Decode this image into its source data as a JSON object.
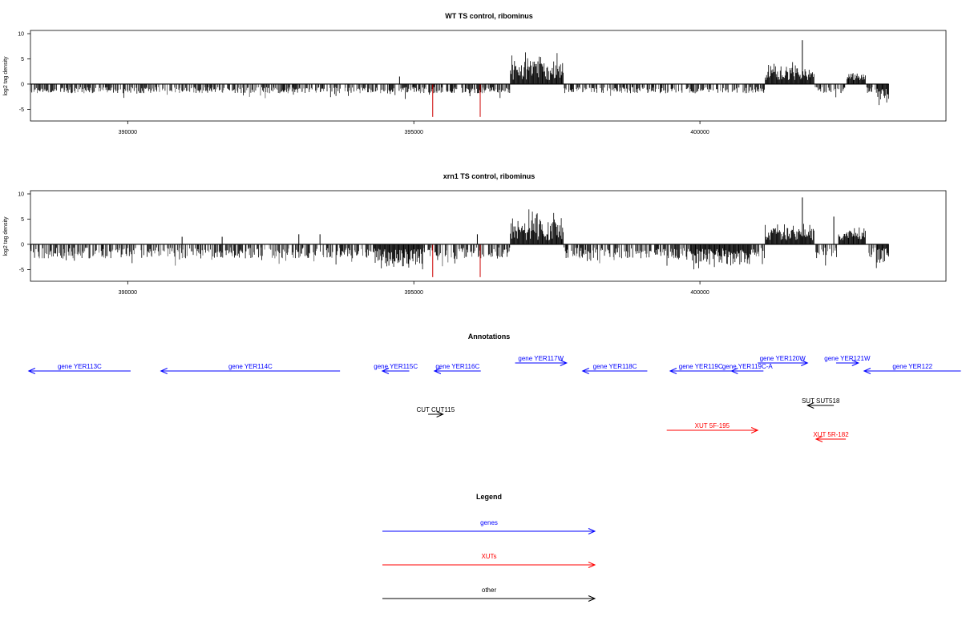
{
  "chart_data": {
    "type": "bar",
    "x_ticks": [
      390000,
      395000,
      400000
    ],
    "xlim": [
      388300,
      404300
    ],
    "ylim": [
      -7,
      10
    ],
    "y_ticks": [
      -5,
      0,
      5,
      10
    ],
    "ylabel": "log2 tag density",
    "colors": {
      "forward": "#000000",
      "reverse": "#1a1a1a",
      "highlight": "#cc0000"
    },
    "tracks": [
      {
        "title": "WT TS control, ribominus",
        "base_scale": 0.55,
        "highlight_lines": [
          {
            "x": 395330,
            "y": -6.5
          },
          {
            "x": 396160,
            "y": -6.5
          }
        ],
        "peaks": [
          {
            "x": 394750,
            "y": 1.5
          },
          {
            "x": 401790,
            "y": 8.7
          }
        ],
        "clusters": [
          {
            "x_start": 396680,
            "x_end": 397620,
            "y_max": 7.3,
            "sign": 1
          },
          {
            "x_start": 401130,
            "x_end": 402000,
            "y_max": 4.5,
            "sign": 1
          },
          {
            "x_start": 402560,
            "x_end": 402900,
            "y_max": 2.5,
            "sign": 1
          },
          {
            "x_start": 403100,
            "x_end": 403350,
            "y_max": -4.5,
            "sign": 1
          }
        ]
      },
      {
        "title": "xrn1 TS control, ribominus",
        "base_scale": 1.0,
        "highlight_lines": [
          {
            "x": 395330,
            "y": -6.5
          },
          {
            "x": 396160,
            "y": -6.5
          }
        ],
        "peaks": [
          {
            "x": 390950,
            "y": 1.5
          },
          {
            "x": 391650,
            "y": 1.5
          },
          {
            "x": 392990,
            "y": 2.0
          },
          {
            "x": 393360,
            "y": 2.0
          },
          {
            "x": 396110,
            "y": 2.0
          },
          {
            "x": 401790,
            "y": 9.3
          },
          {
            "x": 402340,
            "y": 5.5
          }
        ],
        "clusters": [
          {
            "x_start": 394290,
            "x_end": 395160,
            "y_max": -6.0,
            "sign": 1
          },
          {
            "x_start": 396680,
            "x_end": 397620,
            "y_max": 7.0,
            "sign": 1
          },
          {
            "x_start": 399850,
            "x_end": 400900,
            "y_max": -5.5,
            "sign": 1
          },
          {
            "x_start": 401130,
            "x_end": 402000,
            "y_max": 5.0,
            "sign": 1
          },
          {
            "x_start": 402420,
            "x_end": 402900,
            "y_max": 4.0,
            "sign": 1
          },
          {
            "x_start": 403080,
            "x_end": 403380,
            "y_max": -6.5,
            "sign": 1
          }
        ]
      }
    ],
    "annotations": {
      "title": "Annotations",
      "items": [
        {
          "label": "gene YER113C",
          "x_start": 388270,
          "x_end": 390050,
          "dir": "left",
          "row": 1,
          "color": "#0000ff"
        },
        {
          "label": "gene YER114C",
          "x_start": 390580,
          "x_end": 393710,
          "dir": "left",
          "row": 1,
          "color": "#0000ff"
        },
        {
          "label": "gene YER115C",
          "x_start": 394450,
          "x_end": 394920,
          "dir": "left",
          "row": 1,
          "color": "#0000ff"
        },
        {
          "label": "gene YER116C",
          "x_start": 395360,
          "x_end": 396170,
          "dir": "left",
          "row": 1,
          "color": "#0000ff"
        },
        {
          "label": "gene YER117W",
          "x_start": 396770,
          "x_end": 397670,
          "dir": "right",
          "row": 0,
          "color": "#0000ff"
        },
        {
          "label": "gene YER118C",
          "x_start": 397950,
          "x_end": 399080,
          "dir": "left",
          "row": 1,
          "color": "#0000ff"
        },
        {
          "label": "gene YER119C",
          "x_start": 399480,
          "x_end": 400550,
          "dir": "left",
          "row": 1,
          "color": "#0000ff"
        },
        {
          "label": "gene YER119C-A",
          "x_start": 400550,
          "x_end": 401110,
          "dir": "left",
          "row": 1,
          "color": "#0000ff"
        },
        {
          "label": "gene YER120W",
          "x_start": 401010,
          "x_end": 401880,
          "dir": "right",
          "row": 0,
          "color": "#0000ff"
        },
        {
          "label": "gene YER121W",
          "x_start": 402380,
          "x_end": 402770,
          "dir": "right",
          "row": 0,
          "color": "#0000ff"
        },
        {
          "label": "gene YER122",
          "x_start": 402870,
          "x_end": 404560,
          "dir": "left",
          "row": 1,
          "color": "#0000ff"
        },
        {
          "label": "SUT SUT518",
          "x_start": 401880,
          "x_end": 402340,
          "dir": "left",
          "row": 2,
          "color": "#000000"
        },
        {
          "label": "CUT CUT115",
          "x_start": 395250,
          "x_end": 395510,
          "dir": "right",
          "row": 3,
          "color": "#000000"
        },
        {
          "label": "XUT 5F-195",
          "x_start": 399420,
          "x_end": 401010,
          "dir": "right",
          "row": 4,
          "color": "#ff0000"
        },
        {
          "label": "XUT 5R-182",
          "x_start": 402030,
          "x_end": 402550,
          "dir": "left",
          "row": 5,
          "color": "#ff0000"
        }
      ]
    },
    "legend": {
      "title": "Legend",
      "items": [
        {
          "label": "genes",
          "color": "#0000ff"
        },
        {
          "label": "XUTs",
          "color": "#ff0000"
        },
        {
          "label": "other",
          "color": "#000000"
        }
      ]
    }
  }
}
